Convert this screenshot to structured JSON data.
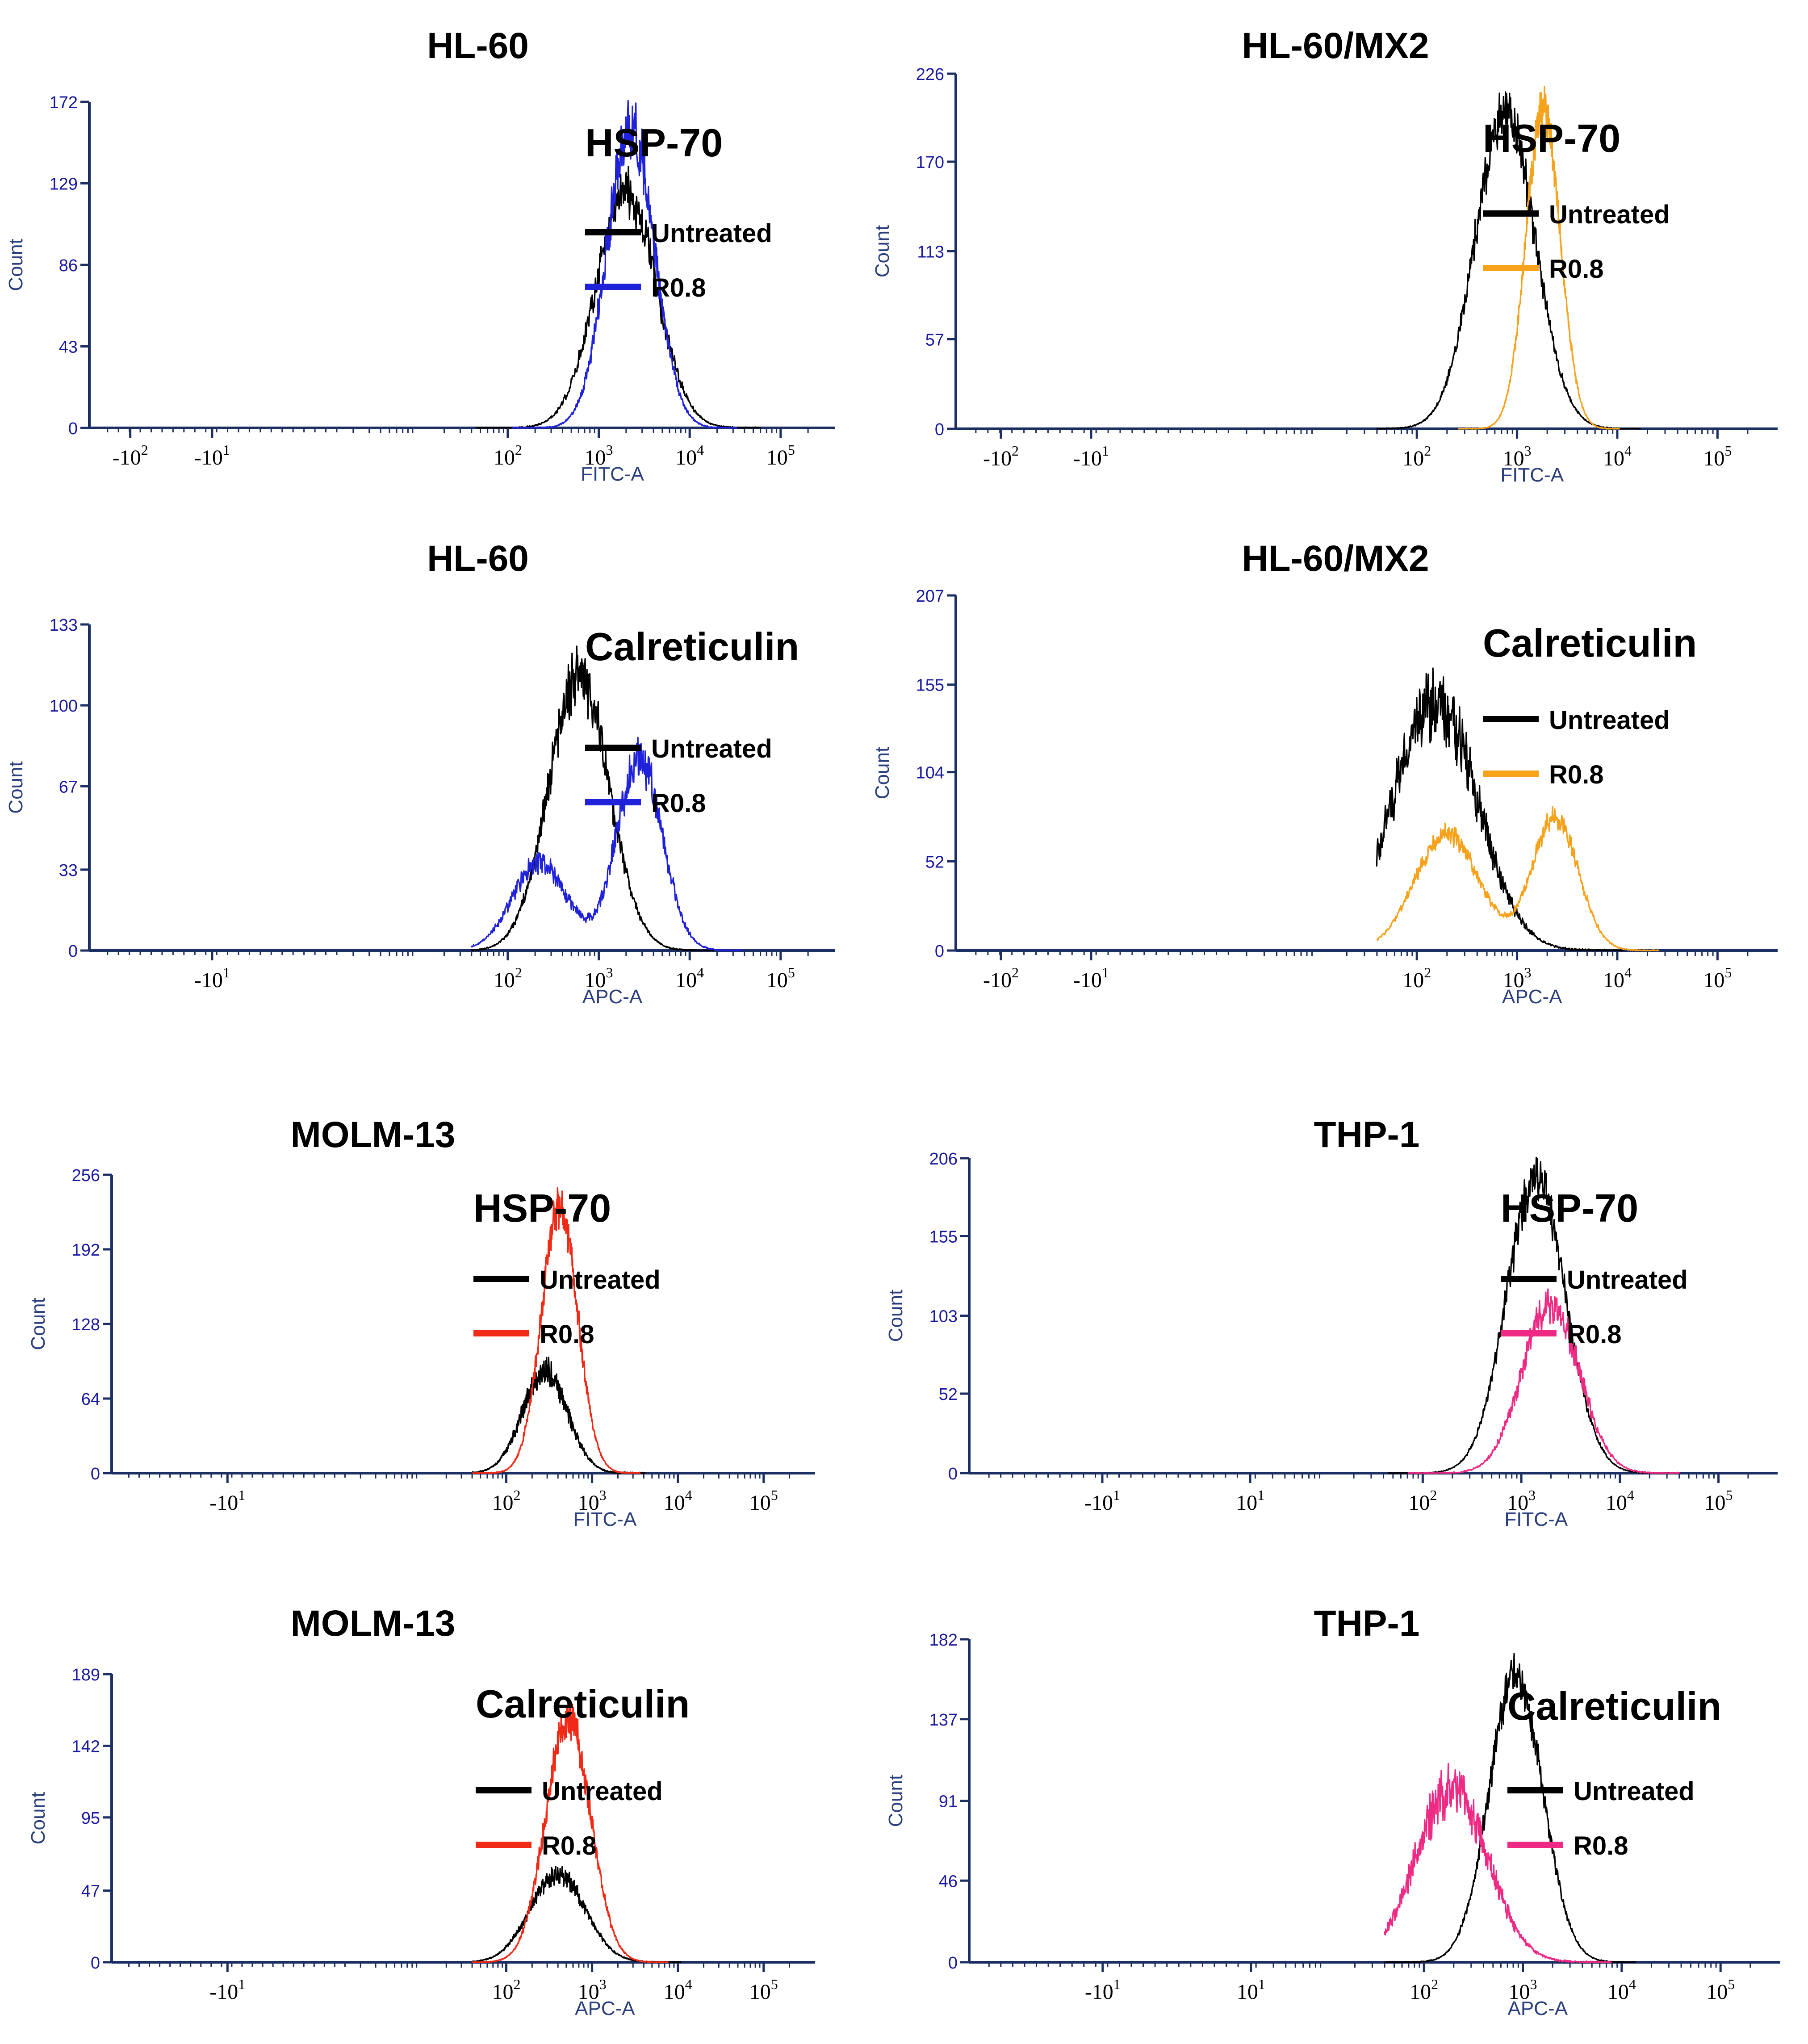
{
  "chart_data": [
    {
      "type": "histogram",
      "title": "HL-60",
      "marker": "HSP-70",
      "xlabel": "FITC-A",
      "ylabel": "Count",
      "x_scale": "biexponential",
      "x_ticks": [
        "-10^2",
        "-10^1",
        "10^2",
        "10^3",
        "10^4",
        "10^5"
      ],
      "y_ticks": [
        "0",
        "43",
        "86",
        "129",
        "172"
      ],
      "ylim": [
        0,
        172
      ],
      "legend": [
        "Untreated",
        "R0.8"
      ],
      "series": [
        {
          "name": "Untreated",
          "color": "#000000",
          "peak_log10": 3.3,
          "peak_count": 125,
          "width": 0.33,
          "noise": 0.1
        },
        {
          "name": "R0.8",
          "color": "#1f22d8",
          "peak_log10": 3.35,
          "peak_count": 158,
          "width": 0.26,
          "noise": 0.1
        }
      ]
    },
    {
      "type": "histogram",
      "title": "HL-60/MX2",
      "marker": "HSP-70",
      "xlabel": "FITC-A",
      "ylabel": "Count",
      "x_scale": "biexponential",
      "x_ticks": [
        "-10^2",
        "-10^1",
        "10^2",
        "10^3",
        "10^4",
        "10^5"
      ],
      "y_ticks": [
        "0",
        "57",
        "113",
        "170",
        "226"
      ],
      "ylim": [
        0,
        226
      ],
      "legend": [
        "Untreated",
        "R0.8"
      ],
      "series": [
        {
          "name": "Untreated",
          "color": "#000000",
          "peak_log10": 2.88,
          "peak_count": 200,
          "width": 0.3,
          "noise": 0.08
        },
        {
          "name": "R0.8",
          "color": "#f7a21b",
          "peak_log10": 3.26,
          "peak_count": 205,
          "width": 0.17,
          "noise": 0.06
        }
      ]
    },
    {
      "type": "histogram",
      "title": "HL-60",
      "marker": "Calreticulin",
      "xlabel": "APC-A",
      "ylabel": "Count",
      "x_scale": "biexponential",
      "x_ticks": [
        "-10^1",
        "10^2",
        "10^3",
        "10^4",
        "10^5"
      ],
      "y_ticks": [
        "0",
        "33",
        "67",
        "100",
        "133"
      ],
      "ylim": [
        0,
        133
      ],
      "legend": [
        "Untreated",
        "R0.8"
      ],
      "series": [
        {
          "name": "Untreated",
          "color": "#000000",
          "peak_log10": 2.78,
          "peak_count": 112,
          "width": 0.33,
          "noise": 0.1
        },
        {
          "name": "R0.8",
          "color": "#1f22d8",
          "peak_log10": 3.45,
          "peak_count": 78,
          "width": 0.25,
          "noise": 0.12,
          "peak2_log10": 2.35,
          "peak2_count": 36,
          "width2": 0.3
        }
      ]
    },
    {
      "type": "histogram",
      "title": "HL-60/MX2",
      "marker": "Calreticulin",
      "xlabel": "APC-A",
      "ylabel": "Count",
      "x_scale": "biexponential",
      "x_ticks": [
        "-10^2",
        "-10^1",
        "10^2",
        "10^3",
        "10^4",
        "10^5"
      ],
      "y_ticks": [
        "0",
        "52",
        "104",
        "155",
        "207"
      ],
      "ylim": [
        0,
        207
      ],
      "legend": [
        "Untreated",
        "R0.8"
      ],
      "series": [
        {
          "name": "Untreated",
          "color": "#000000",
          "peak_log10": 2.18,
          "peak_count": 145,
          "width": 0.42,
          "noise": 0.14
        },
        {
          "name": "R0.8",
          "color": "#f7a21b",
          "peak_log10": 3.38,
          "peak_count": 78,
          "width": 0.23,
          "noise": 0.08,
          "peak2_log10": 2.3,
          "peak2_count": 68,
          "width2": 0.32
        }
      ]
    },
    {
      "type": "histogram",
      "title": "MOLM-13",
      "marker": "HSP-70",
      "xlabel": "FITC-A",
      "ylabel": "Count",
      "x_scale": "biexponential",
      "x_ticks": [
        "-10^1",
        "10^2",
        "10^3",
        "10^4",
        "10^5"
      ],
      "y_ticks": [
        "0",
        "64",
        "128",
        "192",
        "256"
      ],
      "ylim": [
        0,
        256
      ],
      "legend": [
        "Untreated",
        "R0.8"
      ],
      "series": [
        {
          "name": "Untreated",
          "color": "#000000",
          "peak_log10": 2.45,
          "peak_count": 88,
          "width": 0.26,
          "noise": 0.12
        },
        {
          "name": "R0.8",
          "color": "#f02a16",
          "peak_log10": 2.62,
          "peak_count": 228,
          "width": 0.21,
          "noise": 0.08
        }
      ]
    },
    {
      "type": "histogram",
      "title": "THP-1",
      "marker": "HSP-70",
      "xlabel": "FITC-A",
      "ylabel": "Count",
      "x_scale": "biexponential",
      "x_ticks": [
        "-10^1",
        "10^1",
        "10^2",
        "10^3",
        "10^4",
        "10^5"
      ],
      "y_ticks": [
        "0",
        "52",
        "103",
        "155",
        "206"
      ],
      "ylim": [
        0,
        206
      ],
      "legend": [
        "Untreated",
        "R0.8"
      ],
      "series": [
        {
          "name": "Untreated",
          "color": "#000000",
          "peak_log10": 3.15,
          "peak_count": 192,
          "width": 0.3,
          "noise": 0.07
        },
        {
          "name": "R0.8",
          "color": "#ef2a84",
          "peak_log10": 3.3,
          "peak_count": 110,
          "width": 0.29,
          "noise": 0.1
        }
      ]
    },
    {
      "type": "histogram",
      "title": "MOLM-13",
      "marker": "Calreticulin",
      "xlabel": "APC-A",
      "ylabel": "Count",
      "x_scale": "biexponential",
      "x_ticks": [
        "-10^1",
        "10^2",
        "10^3",
        "10^4",
        "10^5"
      ],
      "y_ticks": [
        "0",
        "47",
        "95",
        "142",
        "189"
      ],
      "ylim": [
        0,
        189
      ],
      "legend": [
        "Untreated",
        "R0.8"
      ],
      "series": [
        {
          "name": "Untreated",
          "color": "#000000",
          "peak_log10": 2.6,
          "peak_count": 58,
          "width": 0.32,
          "noise": 0.1
        },
        {
          "name": "R0.8",
          "color": "#f02a16",
          "peak_log10": 2.72,
          "peak_count": 160,
          "width": 0.26,
          "noise": 0.08
        }
      ]
    },
    {
      "type": "histogram",
      "title": "THP-1",
      "marker": "Calreticulin",
      "xlabel": "APC-A",
      "ylabel": "Count",
      "x_scale": "biexponential",
      "x_ticks": [
        "-10^1",
        "10^1",
        "10^2",
        "10^3",
        "10^4",
        "10^5"
      ],
      "y_ticks": [
        "0",
        "46",
        "91",
        "137",
        "182"
      ],
      "ylim": [
        0,
        182
      ],
      "legend": [
        "Untreated",
        "R0.8"
      ],
      "series": [
        {
          "name": "Untreated",
          "color": "#000000",
          "peak_log10": 2.93,
          "peak_count": 162,
          "width": 0.27,
          "noise": 0.07
        },
        {
          "name": "R0.8",
          "color": "#ef2a84",
          "peak_log10": 2.28,
          "peak_count": 98,
          "width": 0.36,
          "noise": 0.14
        }
      ]
    }
  ]
}
